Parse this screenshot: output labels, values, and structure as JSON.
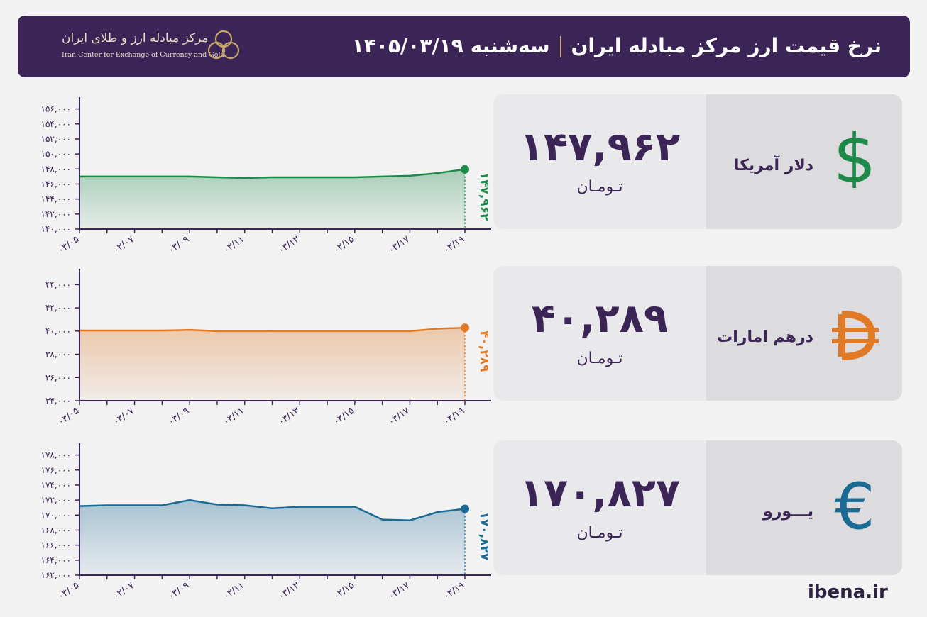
{
  "header": {
    "title": "نرخ قیمت ارز مرکز مبادله ایران",
    "date": "سه‌شنبه ۱۴۰۵/۰۳/۱۹",
    "logo_fa": "مرکز مبادله ارز و طلای ایران",
    "logo_en": "Iran Center for Exchange of Currency and Gold"
  },
  "unit_label": "تـومـان",
  "footer": "ibena.ir",
  "chart_data": [
    {
      "type": "area",
      "currency": "دلار آمریکا",
      "icon": "dollar-sign-icon",
      "color": "#1e8a4a",
      "current_value_label": "۱۴۷,۹۶۲",
      "end_label": "۱۴۷,۹۶۲",
      "x": [
        "۰۳/۰۵",
        "۰۳/۰۶",
        "۰۳/۰۷",
        "۰۳/۰۸",
        "۰۳/۰۹",
        "۰۳/۱۰",
        "۰۳/۱۱",
        "۰۳/۱۲",
        "۰۳/۱۳",
        "۰۳/۱۴",
        "۰۳/۱۵",
        "۰۳/۱۶",
        "۰۳/۱۷",
        "۰۳/۱۸",
        "۰۳/۱۹"
      ],
      "x_tick_labels": [
        "۰۳/۰۵",
        "۰۳/۰۷",
        "۰۳/۰۹",
        "۰۳/۱۱",
        "۰۳/۱۳",
        "۰۳/۱۵",
        "۰۳/۱۷",
        "۰۳/۱۹"
      ],
      "values": [
        147000,
        147000,
        147000,
        147000,
        147000,
        146900,
        146800,
        146900,
        146900,
        146900,
        146900,
        147000,
        147100,
        147450,
        147962
      ],
      "ylim": [
        140000,
        157000
      ],
      "y_ticks": [
        140000,
        142000,
        144000,
        146000,
        148000,
        150000,
        152000,
        154000,
        156000
      ],
      "y_tick_labels": [
        "۱۴۰,۰۰۰",
        "۱۴۲,۰۰۰",
        "۱۴۴,۰۰۰",
        "۱۴۶,۰۰۰",
        "۱۴۸,۰۰۰",
        "۱۵۰,۰۰۰",
        "۱۵۲,۰۰۰",
        "۱۵۴,۰۰۰",
        "۱۵۶,۰۰۰"
      ]
    },
    {
      "type": "area",
      "currency": "درهم امارات",
      "icon": "dirham-sign-icon",
      "color": "#e07a26",
      "current_value_label": "۴۰,۲۸۹",
      "end_label": "۴۰,۲۸۹",
      "x": [
        "۰۳/۰۵",
        "۰۳/۰۶",
        "۰۳/۰۷",
        "۰۳/۰۸",
        "۰۳/۰۹",
        "۰۳/۱۰",
        "۰۳/۱۱",
        "۰۳/۱۲",
        "۰۳/۱۳",
        "۰۳/۱۴",
        "۰۳/۱۵",
        "۰۳/۱۶",
        "۰۳/۱۷",
        "۰۳/۱۸",
        "۰۳/۱۹"
      ],
      "x_tick_labels": [
        "۰۳/۰۵",
        "۰۳/۰۷",
        "۰۳/۰۹",
        "۰۳/۱۱",
        "۰۳/۱۳",
        "۰۳/۱۵",
        "۰۳/۱۷",
        "۰۳/۱۹"
      ],
      "values": [
        40050,
        40050,
        40050,
        40050,
        40100,
        40000,
        40000,
        40000,
        40000,
        40000,
        40000,
        40000,
        40000,
        40200,
        40289
      ],
      "ylim": [
        34000,
        45000
      ],
      "y_ticks": [
        34000,
        36000,
        38000,
        40000,
        42000,
        44000
      ],
      "y_tick_labels": [
        "۳۴,۰۰۰",
        "۳۶,۰۰۰",
        "۳۸,۰۰۰",
        "۴۰,۰۰۰",
        "۴۲,۰۰۰",
        "۴۴,۰۰۰"
      ]
    },
    {
      "type": "area",
      "currency": "یـــورو",
      "icon": "euro-sign-icon",
      "color": "#1b6a94",
      "current_value_label": "۱۷۰,۸۲۷",
      "end_label": "۱۷۰,۸۲۷",
      "x": [
        "۰۳/۰۵",
        "۰۳/۰۶",
        "۰۳/۰۷",
        "۰۳/۰۸",
        "۰۳/۰۹",
        "۰۳/۱۰",
        "۰۳/۱۱",
        "۰۳/۱۲",
        "۰۳/۱۳",
        "۰۳/۱۴",
        "۰۳/۱۵",
        "۰۳/۱۶",
        "۰۳/۱۷",
        "۰۳/۱۸",
        "۰۳/۱۹"
      ],
      "x_tick_labels": [
        "۰۳/۰۵",
        "۰۳/۰۷",
        "۰۳/۰۹",
        "۰۳/۱۱",
        "۰۳/۱۳",
        "۰۳/۱۵",
        "۰۳/۱۷",
        "۰۳/۱۹"
      ],
      "values": [
        171200,
        171300,
        171300,
        171300,
        172000,
        171400,
        171300,
        170900,
        171100,
        171100,
        171100,
        169400,
        169300,
        170400,
        170827
      ],
      "ylim": [
        162000,
        179000
      ],
      "y_ticks": [
        162000,
        164000,
        166000,
        168000,
        170000,
        172000,
        174000,
        176000,
        178000
      ],
      "y_tick_labels": [
        "۱۶۲,۰۰۰",
        "۱۶۴,۰۰۰",
        "۱۶۶,۰۰۰",
        "۱۶۸,۰۰۰",
        "۱۷۰,۰۰۰",
        "۱۷۲,۰۰۰",
        "۱۷۴,۰۰۰",
        "۱۷۶,۰۰۰",
        "۱۷۸,۰۰۰"
      ]
    }
  ]
}
